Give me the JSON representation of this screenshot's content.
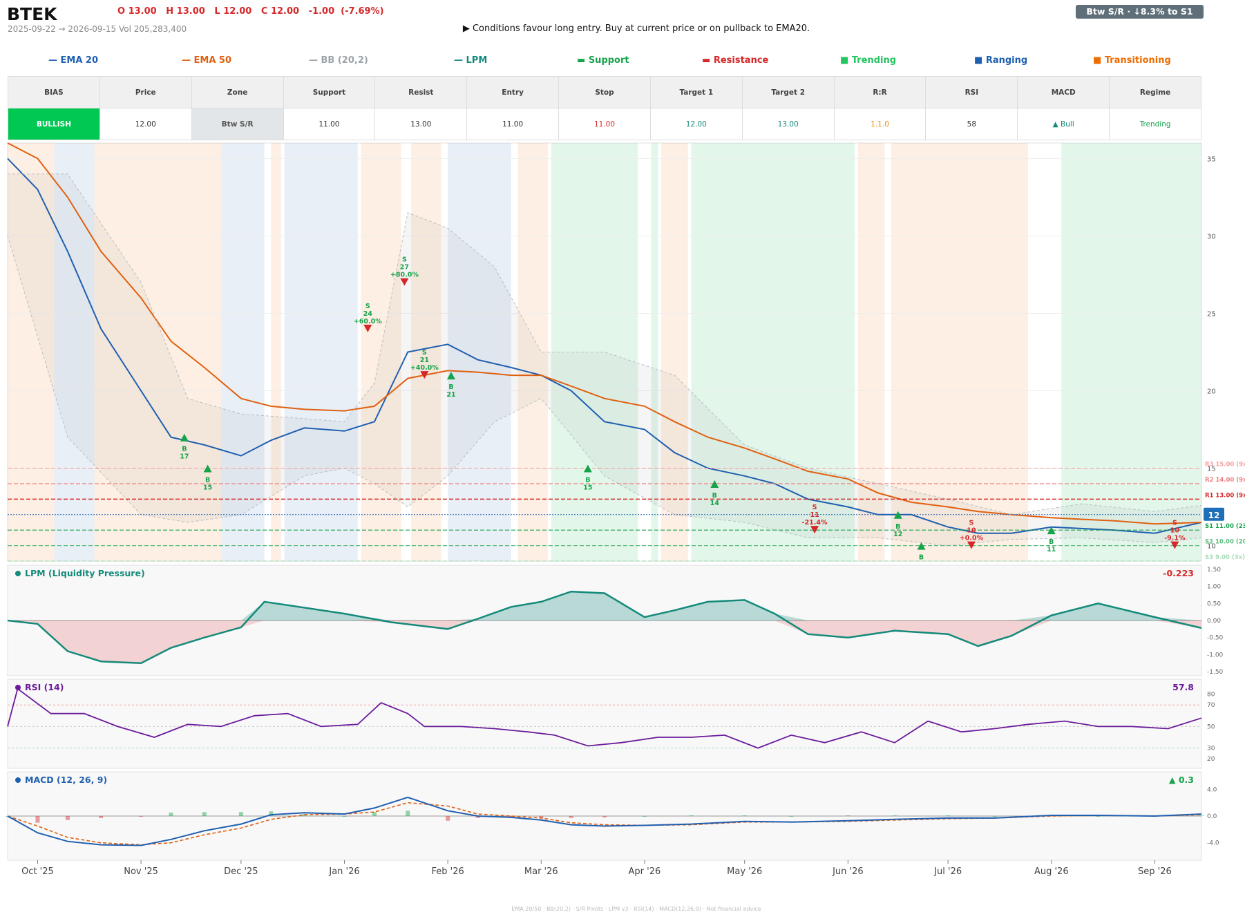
{
  "header": {
    "ticker": "BTEK",
    "ohlc": "O 13.00   H 13.00   L 12.00   C 12.00   -1.00  (-7.69%)",
    "range": "2025-09-22 → 2026-09-15   Vol 205,283,400",
    "signal": "▶  Conditions favour long entry. Buy at current price or on pullback to EMA20.",
    "badge": "Btw S/R  ·  ↓8.3% to S1"
  },
  "legend": [
    {
      "label": "EMA 20",
      "marker": "—",
      "color": "#1f5fb0"
    },
    {
      "label": "EMA 50",
      "marker": "—",
      "color": "#e06010"
    },
    {
      "label": "BB (20,2)",
      "marker": "—",
      "color": "#9aa3aa"
    },
    {
      "label": "LPM",
      "marker": "—",
      "color": "#138a7a"
    },
    {
      "label": "Support",
      "marker": "▬",
      "color": "#17a34a"
    },
    {
      "label": "Resistance",
      "marker": "▬",
      "color": "#d62728"
    },
    {
      "label": "Trending",
      "marker": "■",
      "color": "#22c55e"
    },
    {
      "label": "Ranging",
      "marker": "■",
      "color": "#1f5fb0"
    },
    {
      "label": "Transitioning",
      "marker": "■",
      "color": "#ef6c00"
    }
  ],
  "table": {
    "headers": [
      "BIAS",
      "Price",
      "Zone",
      "Support",
      "Resist",
      "Entry",
      "Stop",
      "Target 1",
      "Target 2",
      "R:R",
      "RSI",
      "MACD",
      "Regime"
    ],
    "values": [
      "BULLISH",
      "12.00",
      "Btw S/R",
      "11.00",
      "13.00",
      "11.00",
      "11.00",
      "12.00",
      "13.00",
      "1.1.0",
      "58",
      "▲ Bull",
      "Trending"
    ],
    "colors": [
      "#ffffff",
      "#333333",
      "#555555",
      "#333333",
      "#333333",
      "#333333",
      "#d62728",
      "#138a7a",
      "#138a7a",
      "#ef8c00",
      "#333333",
      "#138a7a",
      "#17a34a"
    ]
  },
  "chart_data": {
    "type": "line",
    "title": "BTEK",
    "x_ticks": [
      "Oct '25",
      "Nov '25",
      "Dec '25",
      "Jan '26",
      "Feb '26",
      "Mar '26",
      "Apr '26",
      "May '26",
      "Jun '26",
      "Jul '26",
      "Aug '26",
      "Sep '26"
    ],
    "x_tick_dates": [
      "2025-10-01",
      "2025-11-01",
      "2025-12-01",
      "2026-01-01",
      "2026-02-01",
      "2026-03-01",
      "2026-04-01",
      "2026-05-01",
      "2026-06-01",
      "2026-07-01",
      "2026-08-01",
      "2026-09-01"
    ],
    "date_range": [
      "2025-09-22",
      "2026-09-15"
    ],
    "price_panel": {
      "ylim": [
        9,
        36
      ],
      "yticks": [
        10,
        15,
        20,
        25,
        30,
        35
      ],
      "series": [
        {
          "name": "EMA 20",
          "color": "#1f5fb0",
          "x": [
            "2025-09-22",
            "2025-10-01",
            "2025-10-10",
            "2025-10-20",
            "2025-11-01",
            "2025-11-10",
            "2025-11-20",
            "2025-12-01",
            "2025-12-10",
            "2025-12-20",
            "2026-01-01",
            "2026-01-10",
            "2026-01-20",
            "2026-02-01",
            "2026-02-10",
            "2026-02-20",
            "2026-03-01",
            "2026-03-10",
            "2026-03-20",
            "2026-04-01",
            "2026-04-10",
            "2026-04-20",
            "2026-05-01",
            "2026-05-10",
            "2026-05-20",
            "2026-06-01",
            "2026-06-10",
            "2026-06-20",
            "2026-07-01",
            "2026-07-10",
            "2026-07-20",
            "2026-08-01",
            "2026-08-10",
            "2026-08-20",
            "2026-09-01",
            "2026-09-15"
          ],
          "y": [
            35,
            33,
            29,
            24,
            20,
            17,
            16.5,
            15.8,
            16.8,
            17.6,
            17.4,
            18,
            22.5,
            23,
            22,
            21.5,
            21,
            20,
            18,
            17.5,
            16,
            15,
            14.5,
            14,
            13,
            12.5,
            12,
            12,
            11.2,
            10.8,
            10.8,
            11.2,
            11.1,
            11,
            10.8,
            11.5
          ]
        },
        {
          "name": "EMA 50",
          "color": "#e06010",
          "x": [
            "2025-09-22",
            "2025-10-01",
            "2025-10-10",
            "2025-10-20",
            "2025-11-01",
            "2025-11-10",
            "2025-11-20",
            "2025-12-01",
            "2025-12-10",
            "2025-12-20",
            "2026-01-01",
            "2026-01-10",
            "2026-01-20",
            "2026-02-01",
            "2026-02-10",
            "2026-02-20",
            "2026-03-01",
            "2026-03-10",
            "2026-03-20",
            "2026-04-01",
            "2026-04-10",
            "2026-04-20",
            "2026-05-01",
            "2026-05-10",
            "2026-05-20",
            "2026-06-01",
            "2026-06-10",
            "2026-06-20",
            "2026-07-01",
            "2026-07-10",
            "2026-07-20",
            "2026-08-01",
            "2026-08-10",
            "2026-08-20",
            "2026-09-01",
            "2026-09-15"
          ],
          "y": [
            36,
            35,
            32.5,
            29,
            26,
            23.2,
            21.5,
            19.5,
            19,
            18.8,
            18.7,
            19,
            20.8,
            21.3,
            21.2,
            21,
            21,
            20.3,
            19.5,
            19,
            18,
            17,
            16.3,
            15.6,
            14.8,
            14.3,
            13.4,
            12.8,
            12.5,
            12.2,
            12,
            11.8,
            11.7,
            11.6,
            11.4,
            11.5
          ]
        },
        {
          "name": "BB upper",
          "color": "#9aa3aa",
          "x": [
            "2025-09-22",
            "2025-10-10",
            "2025-11-01",
            "2025-11-15",
            "2025-12-01",
            "2025-12-20",
            "2026-01-01",
            "2026-01-10",
            "2026-01-20",
            "2026-02-01",
            "2026-02-15",
            "2026-03-01",
            "2026-03-20",
            "2026-04-10",
            "2026-05-01",
            "2026-05-20",
            "2026-06-10",
            "2026-07-01",
            "2026-07-20",
            "2026-08-10",
            "2026-09-01",
            "2026-09-15"
          ],
          "y": [
            34,
            34,
            27,
            19.5,
            18.5,
            18.2,
            18,
            20.5,
            31.5,
            30.5,
            28,
            22.5,
            22.5,
            21,
            16.5,
            15,
            14,
            13,
            12,
            12.7,
            12.2,
            12.6
          ]
        },
        {
          "name": "BB lower",
          "color": "#9aa3aa",
          "x": [
            "2025-09-22",
            "2025-10-10",
            "2025-11-01",
            "2025-11-15",
            "2025-12-01",
            "2025-12-20",
            "2026-01-01",
            "2026-01-10",
            "2026-01-20",
            "2026-02-01",
            "2026-02-15",
            "2026-03-01",
            "2026-03-20",
            "2026-04-10",
            "2026-05-01",
            "2026-05-20",
            "2026-06-10",
            "2026-07-01",
            "2026-07-20",
            "2026-08-10",
            "2026-09-01",
            "2026-09-15"
          ],
          "y": [
            30,
            17,
            12,
            11.5,
            12,
            14.5,
            15,
            14,
            12.5,
            14.5,
            18,
            19.5,
            14.5,
            12,
            11.5,
            10.5,
            10.5,
            10,
            10.4,
            10.5,
            10.2,
            10.5
          ]
        }
      ],
      "levels": [
        {
          "label": "R3 15.00 (9x)",
          "value": 15,
          "color": "#f3a0a0"
        },
        {
          "label": "R2 14.00 (9x)",
          "value": 14,
          "color": "#ee8080"
        },
        {
          "label": "R1 13.00 (9x)",
          "value": 13,
          "color": "#d62728"
        },
        {
          "label": "S1 11.00 (23x)",
          "value": 11,
          "color": "#17a34a"
        },
        {
          "label": "S2 10.00 (20x)",
          "value": 10,
          "color": "#5bbd7a"
        },
        {
          "label": "S3 9.00 (3x)",
          "value": 9,
          "color": "#a6dcb6"
        }
      ],
      "last_price": 12,
      "last_price_label": "12",
      "signals": [
        {
          "type": "B",
          "date": "2025-11-14",
          "price": 17,
          "label": "B\n17"
        },
        {
          "type": "B",
          "date": "2025-11-21",
          "price": 15,
          "label": "B\n15"
        },
        {
          "type": "S",
          "date": "2026-01-08",
          "price": 24,
          "label": "S\n24\n+60.0%"
        },
        {
          "type": "S",
          "date": "2026-01-19",
          "price": 27,
          "label": "S\n27\n+80.0%"
        },
        {
          "type": "S",
          "date": "2026-01-25",
          "price": 21,
          "label": "S\n21\n+40.0%"
        },
        {
          "type": "B",
          "date": "2026-02-02",
          "price": 21,
          "label": "B\n21"
        },
        {
          "type": "B",
          "date": "2026-03-15",
          "price": 15,
          "label": "B\n15"
        },
        {
          "type": "B",
          "date": "2026-04-22",
          "price": 14,
          "label": "B\n14"
        },
        {
          "type": "S",
          "date": "2026-05-22",
          "price": 11,
          "label": "S\n11\n-21.4%"
        },
        {
          "type": "B",
          "date": "2026-06-16",
          "price": 12,
          "label": "B\n12"
        },
        {
          "type": "B",
          "date": "2026-06-23",
          "price": 10,
          "label": "B"
        },
        {
          "type": "S",
          "date": "2026-07-08",
          "price": 10,
          "label": "S\n10\n+0.0%"
        },
        {
          "type": "B",
          "date": "2026-08-01",
          "price": 11,
          "label": "B\n11"
        },
        {
          "type": "S",
          "date": "2026-09-07",
          "price": 10,
          "label": "S\n10\n-9.1%"
        }
      ],
      "regimes": [
        {
          "from": "2025-09-22",
          "to": "2025-10-06",
          "state": "Transitioning"
        },
        {
          "from": "2025-10-06",
          "to": "2025-10-18",
          "state": "Ranging"
        },
        {
          "from": "2025-10-18",
          "to": "2025-11-25",
          "state": "Transitioning"
        },
        {
          "from": "2025-11-25",
          "to": "2025-12-08",
          "state": "Ranging"
        },
        {
          "from": "2025-12-10",
          "to": "2025-12-13",
          "state": "Transitioning"
        },
        {
          "from": "2025-12-14",
          "to": "2026-01-05",
          "state": "Ranging"
        },
        {
          "from": "2026-01-06",
          "to": "2026-01-18",
          "state": "Transitioning"
        },
        {
          "from": "2026-01-21",
          "to": "2026-01-30",
          "state": "Transitioning"
        },
        {
          "from": "2026-02-01",
          "to": "2026-02-20",
          "state": "Ranging"
        },
        {
          "from": "2026-02-22",
          "to": "2026-03-03",
          "state": "Transitioning"
        },
        {
          "from": "2026-03-04",
          "to": "2026-03-30",
          "state": "Trending"
        },
        {
          "from": "2026-04-03",
          "to": "2026-04-05",
          "state": "Trending"
        },
        {
          "from": "2026-04-06",
          "to": "2026-04-14",
          "state": "Transitioning"
        },
        {
          "from": "2026-04-15",
          "to": "2026-06-03",
          "state": "Trending"
        },
        {
          "from": "2026-06-04",
          "to": "2026-06-12",
          "state": "Transitioning"
        },
        {
          "from": "2026-06-14",
          "to": "2026-07-25",
          "state": "Transitioning"
        },
        {
          "from": "2026-08-04",
          "to": "2026-09-15",
          "state": "Trending"
        }
      ]
    },
    "lpm_panel": {
      "title": "LPM (Liquidity Pressure)",
      "last_value": "-0.223",
      "ylim": [
        -1.5,
        1.5
      ],
      "yticks": [
        "1.50",
        "1.00",
        "0.50",
        "0.00",
        "-0.50",
        "-1.00",
        "-1.50"
      ],
      "x": [
        "2025-09-22",
        "2025-10-01",
        "2025-10-10",
        "2025-10-20",
        "2025-11-01",
        "2025-11-10",
        "2025-11-20",
        "2025-12-01",
        "2025-12-08",
        "2025-12-15",
        "2026-01-01",
        "2026-01-15",
        "2026-02-01",
        "2026-02-10",
        "2026-02-20",
        "2026-03-01",
        "2026-03-10",
        "2026-03-20",
        "2026-04-01",
        "2026-04-10",
        "2026-04-20",
        "2026-05-01",
        "2026-05-10",
        "2026-05-20",
        "2026-06-01",
        "2026-06-15",
        "2026-07-01",
        "2026-07-10",
        "2026-07-20",
        "2026-08-01",
        "2026-08-15",
        "2026-09-01",
        "2026-09-15"
      ],
      "values": [
        0,
        -0.1,
        -0.9,
        -1.2,
        -1.25,
        -0.8,
        -0.5,
        -0.2,
        0.55,
        0.45,
        0.2,
        -0.05,
        -0.25,
        0.05,
        0.4,
        0.55,
        0.85,
        0.8,
        0.1,
        0.3,
        0.55,
        0.6,
        0.2,
        -0.4,
        -0.5,
        -0.3,
        -0.4,
        -0.75,
        -0.45,
        0.15,
        0.5,
        0.1,
        -0.22
      ]
    },
    "rsi_panel": {
      "title": "RSI (14)",
      "last_value": "57.8",
      "ylim": [
        15,
        90
      ],
      "yticks": [
        "80",
        "70",
        "50",
        "30",
        "20"
      ],
      "x": [
        "2025-09-22",
        "2025-09-25",
        "2025-10-05",
        "2025-10-15",
        "2025-10-25",
        "2025-11-05",
        "2025-11-15",
        "2025-11-25",
        "2025-12-05",
        "2025-12-15",
        "2025-12-25",
        "2026-01-05",
        "2026-01-12",
        "2026-01-20",
        "2026-01-25",
        "2026-02-05",
        "2026-02-15",
        "2026-02-25",
        "2026-03-05",
        "2026-03-15",
        "2026-03-25",
        "2026-04-05",
        "2026-04-15",
        "2026-04-25",
        "2026-05-05",
        "2026-05-15",
        "2026-05-25",
        "2026-06-05",
        "2026-06-15",
        "2026-06-25",
        "2026-07-05",
        "2026-07-15",
        "2026-07-25",
        "2026-08-05",
        "2026-08-15",
        "2026-08-25",
        "2026-09-05",
        "2026-09-15"
      ],
      "values": [
        50,
        85,
        62,
        62,
        50,
        40,
        52,
        50,
        60,
        62,
        50,
        52,
        72,
        62,
        50,
        50,
        48,
        45,
        42,
        32,
        35,
        40,
        40,
        42,
        30,
        42,
        35,
        45,
        35,
        55,
        45,
        48,
        52,
        55,
        50,
        50,
        48,
        57.8
      ]
    },
    "macd_panel": {
      "title": "MACD (12, 26, 9)",
      "last_value": "▲ 0.3",
      "ylim": [
        -6,
        6
      ],
      "yticks": [
        "4.0",
        "0.0",
        "-4.0"
      ],
      "x": [
        "2025-09-22",
        "2025-10-01",
        "2025-10-10",
        "2025-10-20",
        "2025-11-01",
        "2025-11-10",
        "2025-11-20",
        "2025-12-01",
        "2025-12-10",
        "2025-12-20",
        "2026-01-01",
        "2026-01-10",
        "2026-01-20",
        "2026-02-01",
        "2026-02-10",
        "2026-02-20",
        "2026-03-01",
        "2026-03-10",
        "2026-03-20",
        "2026-04-01",
        "2026-04-15",
        "2026-05-01",
        "2026-05-15",
        "2026-06-01",
        "2026-06-15",
        "2026-07-01",
        "2026-07-15",
        "2026-08-01",
        "2026-08-15",
        "2026-09-01",
        "2026-09-15"
      ],
      "macd": [
        0,
        -2.5,
        -3.8,
        -4.3,
        -4.4,
        -3.5,
        -2.2,
        -1.2,
        0.2,
        0.5,
        0.3,
        1.2,
        2.8,
        0.8,
        0,
        -0.2,
        -0.6,
        -1.3,
        -1.5,
        -1.4,
        -1.2,
        -0.8,
        -0.9,
        -0.7,
        -0.5,
        -0.3,
        -0.3,
        0.1,
        0.1,
        0,
        0.3
      ],
      "signal": [
        0,
        -1.5,
        -3.2,
        -4.0,
        -4.3,
        -4.0,
        -2.8,
        -1.8,
        -0.5,
        0.2,
        0.3,
        0.6,
        2.0,
        1.5,
        0.3,
        0,
        -0.3,
        -1.0,
        -1.3,
        -1.4,
        -1.3,
        -0.9,
        -0.9,
        -0.8,
        -0.6,
        -0.4,
        -0.3,
        0,
        0.1,
        0,
        0.2
      ]
    }
  },
  "footer": "EMA 20/50  ·  BB(20,2)  ·  S/R Pivots  ·  LPM v3  ·  RSI(14)  ·  MACD(12,26,9)  ·  Not financial advice"
}
